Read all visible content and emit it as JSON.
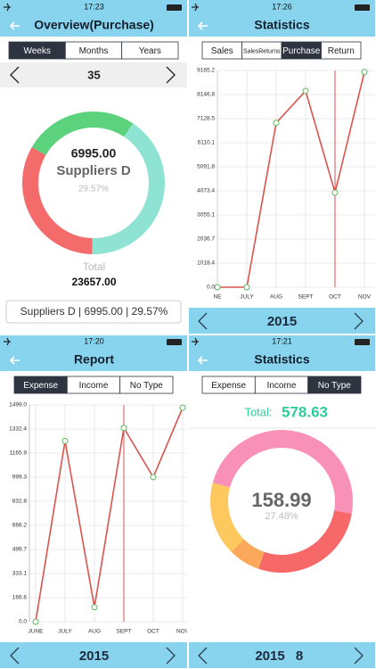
{
  "screens": [
    {
      "time": "17:23",
      "title": "Overview(Purchase)",
      "tabs": [
        "Weeks",
        "Months",
        "Years"
      ],
      "active_tab": 0,
      "period": "35",
      "chart": {
        "type": "donut",
        "segments": [
          {
            "color": "#5dd27c",
            "value": 26
          },
          {
            "color": "#8fe3d2",
            "value": 41
          },
          {
            "color": "#f46b6b",
            "value": 33
          }
        ],
        "center_value": "6995.00",
        "center_name": "Suppliers D",
        "center_percent": "29.57%"
      },
      "total_label": "Total",
      "total_value": "23657.00",
      "summary": "Suppliers D | 6995.00 | 29.57%"
    },
    {
      "time": "17:26",
      "title": "Statistics",
      "tabs": [
        "Sales",
        "SalesReturns",
        "Purchase",
        "Return"
      ],
      "active_tab": 2,
      "chart": {
        "type": "line",
        "categories": [
          "NE",
          "JULY",
          "AUG",
          "SEPT",
          "OCT",
          "NOV"
        ],
        "values": [
          0,
          0,
          6950,
          8300,
          4000,
          9100
        ],
        "color": "#d9534f",
        "ylim": [
          0,
          9165.2
        ],
        "yticks": [
          {
            "value": 0,
            "label": "0.0"
          },
          1018.4,
          2036.7,
          3055.1,
          4073.4,
          5091.8,
          6110.1,
          7128.5,
          8146.8,
          9165.2
        ],
        "marker_category": 4
      },
      "year": "2015"
    },
    {
      "time": "17:20",
      "title": "Report",
      "tabs": [
        "Expense",
        "Income",
        "No Type"
      ],
      "active_tab": 0,
      "chart": {
        "type": "line",
        "categories": [
          "JUNE",
          "JULY",
          "AUG",
          "SEPT",
          "OCT",
          "NOV"
        ],
        "values": [
          0,
          1250,
          100,
          1340,
          1000,
          1480
        ],
        "color": "#d9534f",
        "ylim": [
          0,
          1499
        ],
        "yticks": [
          {
            "value": 0,
            "label": "0.0"
          },
          166.6,
          333.1,
          499.7,
          666.2,
          832.8,
          999.3,
          1165.9,
          1332.4,
          {
            "value": 1499,
            "label": "1499.0"
          }
        ],
        "marker_category": 3
      },
      "year": "2015"
    },
    {
      "time": "17:21",
      "title": "Statistics",
      "tabs": [
        "Expense",
        "Income",
        "No Type"
      ],
      "active_tab": 2,
      "total_label": "Total:",
      "total_value": "578.63",
      "chart": {
        "type": "donut",
        "segments": [
          {
            "color": "#f990b8",
            "value": 48.6
          },
          {
            "color": "#f76868",
            "value": 27.48
          },
          {
            "color": "#fca85a",
            "value": 7.2
          },
          {
            "color": "#fdc85e",
            "value": 16.7
          }
        ],
        "center_value": "158.99",
        "center_percent": "27.48%"
      },
      "year": "2015",
      "month": "8"
    }
  ]
}
